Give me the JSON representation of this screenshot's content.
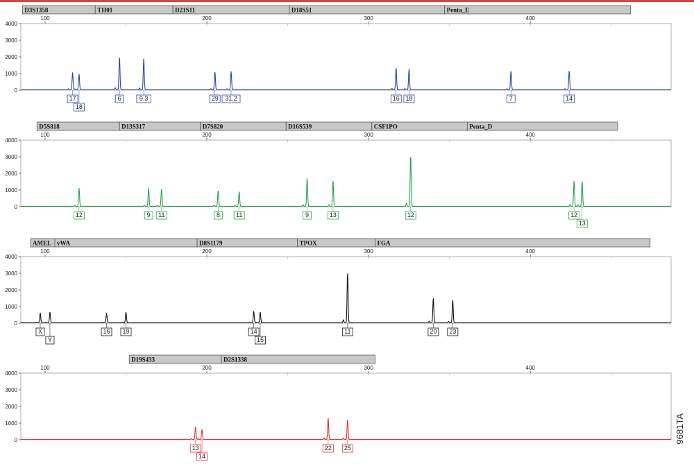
{
  "figure_id": "9681TA",
  "chart_data": [
    {
      "type": "line",
      "name": "blue",
      "color": "#2946a8",
      "xlim": [
        85,
        487
      ],
      "xticks": [
        100,
        200,
        300,
        400
      ],
      "ylim": [
        0,
        4000
      ],
      "yticks": [
        0,
        1000,
        2000,
        3000,
        4000
      ],
      "loci": [
        {
          "name": "D3S1358",
          "start": 86,
          "end": 131
        },
        {
          "name": "TH01",
          "start": 131,
          "end": 179
        },
        {
          "name": "D21S11",
          "start": 179,
          "end": 251
        },
        {
          "name": "D18S51",
          "start": 251,
          "end": 347
        },
        {
          "name": "Penta_E",
          "start": 347,
          "end": 462
        }
      ],
      "peaks": [
        {
          "x": 117,
          "h": 1050,
          "label": "17"
        },
        {
          "x": 121,
          "h": 950,
          "label": "18"
        },
        {
          "x": 146,
          "h": 2000,
          "label": "6"
        },
        {
          "x": 161,
          "h": 1900,
          "label": "9.3"
        },
        {
          "x": 205,
          "h": 1100,
          "label": "29"
        },
        {
          "x": 215,
          "h": 1100,
          "label": "31.2"
        },
        {
          "x": 317,
          "h": 1350,
          "label": "16"
        },
        {
          "x": 325,
          "h": 1250,
          "label": "18"
        },
        {
          "x": 388,
          "h": 1150,
          "label": "7"
        },
        {
          "x": 424,
          "h": 1150,
          "label": "14"
        }
      ]
    },
    {
      "type": "line",
      "name": "green",
      "color": "#22a34a",
      "xlim": [
        85,
        487
      ],
      "xticks": [
        100,
        200,
        300,
        400
      ],
      "ylim": [
        0,
        4000
      ],
      "yticks": [
        0,
        1000,
        2000,
        3000,
        4000
      ],
      "loci": [
        {
          "name": "D5S818",
          "start": 95,
          "end": 146
        },
        {
          "name": "D13S317",
          "start": 146,
          "end": 196
        },
        {
          "name": "D7S820",
          "start": 196,
          "end": 249
        },
        {
          "name": "D16S539",
          "start": 249,
          "end": 302
        },
        {
          "name": "CSF1PO",
          "start": 302,
          "end": 361
        },
        {
          "name": "Penta_D",
          "start": 361,
          "end": 454
        }
      ],
      "peaks": [
        {
          "x": 121,
          "h": 1100,
          "label": "12"
        },
        {
          "x": 164,
          "h": 1100,
          "label": "9"
        },
        {
          "x": 172,
          "h": 1050,
          "label": "11"
        },
        {
          "x": 207,
          "h": 950,
          "label": "8"
        },
        {
          "x": 220,
          "h": 900,
          "label": "11"
        },
        {
          "x": 262,
          "h": 1700,
          "label": "9"
        },
        {
          "x": 278,
          "h": 1550,
          "label": "13"
        },
        {
          "x": 326,
          "h": 3100,
          "label": "12"
        },
        {
          "x": 427,
          "h": 1550,
          "label": "12"
        },
        {
          "x": 432,
          "h": 1550,
          "label": "13"
        }
      ]
    },
    {
      "type": "line",
      "name": "black",
      "color": "#111111",
      "xlim": [
        85,
        487
      ],
      "xticks": [
        100,
        200,
        300,
        400
      ],
      "ylim": [
        0,
        4000
      ],
      "yticks": [
        0,
        1000,
        2000,
        3000,
        4000
      ],
      "loci": [
        {
          "name": "AMEL",
          "start": 91,
          "end": 106
        },
        {
          "name": "vWA",
          "start": 106,
          "end": 194
        },
        {
          "name": "D8S1179",
          "start": 194,
          "end": 256
        },
        {
          "name": "TPOX",
          "start": 256,
          "end": 304
        },
        {
          "name": "FGA",
          "start": 304,
          "end": 474
        }
      ],
      "peaks": [
        {
          "x": 97,
          "h": 600,
          "label": "X"
        },
        {
          "x": 103,
          "h": 650,
          "label": "Y"
        },
        {
          "x": 138,
          "h": 600,
          "label": "16"
        },
        {
          "x": 150,
          "h": 650,
          "label": "19"
        },
        {
          "x": 229,
          "h": 700,
          "label": "14"
        },
        {
          "x": 233,
          "h": 650,
          "label": "15"
        },
        {
          "x": 287,
          "h": 3050,
          "label": "11"
        },
        {
          "x": 340,
          "h": 1500,
          "label": "20"
        },
        {
          "x": 352,
          "h": 1400,
          "label": "23"
        }
      ]
    },
    {
      "type": "line",
      "name": "red",
      "color": "#e03030",
      "xlim": [
        85,
        487
      ],
      "xticks": [
        100,
        200,
        300,
        400
      ],
      "ylim": [
        0,
        4000
      ],
      "yticks": [
        0,
        1000,
        2000,
        3000,
        4000
      ],
      "loci": [
        {
          "name": "D19S433",
          "start": 152,
          "end": 209
        },
        {
          "name": "D2S1338",
          "start": 209,
          "end": 304
        }
      ],
      "peaks": [
        {
          "x": 193,
          "h": 750,
          "label": "13"
        },
        {
          "x": 197,
          "h": 600,
          "label": "14"
        },
        {
          "x": 275,
          "h": 1300,
          "label": "22"
        },
        {
          "x": 287,
          "h": 1200,
          "label": "25"
        }
      ]
    }
  ]
}
